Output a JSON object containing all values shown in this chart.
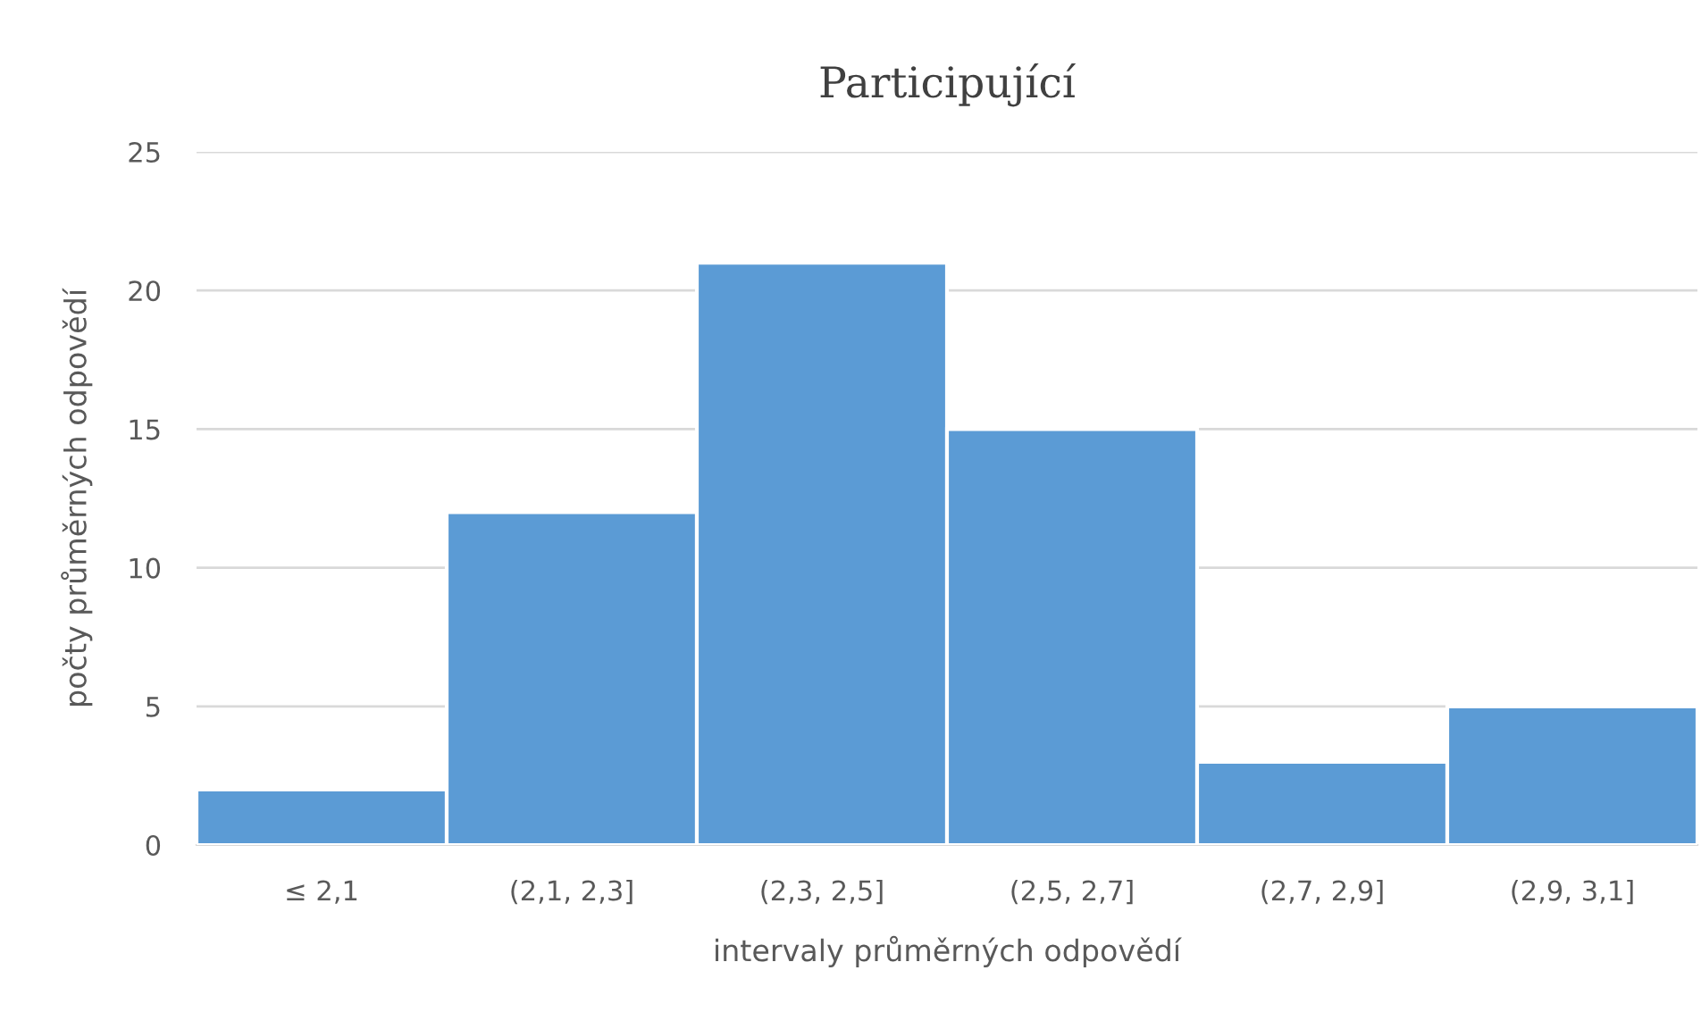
{
  "chart_data": {
    "type": "bar",
    "title": "Participující",
    "xlabel": "intervaly průměrných odpovědí",
    "ylabel": "počty průměrných odpovědí",
    "categories": [
      "≤ 2,1",
      "(2,1, 2,3]",
      "(2,3, 2,5]",
      "(2,5, 2,7]",
      "(2,7, 2,9]",
      "(2,9, 3,1]"
    ],
    "values": [
      2,
      12,
      21,
      15,
      3,
      5
    ],
    "color": "#5b9bd5",
    "ylim": [
      0,
      25
    ],
    "yticks": [
      0,
      5,
      10,
      15,
      20,
      25
    ],
    "grid": "y",
    "legend": false
  }
}
